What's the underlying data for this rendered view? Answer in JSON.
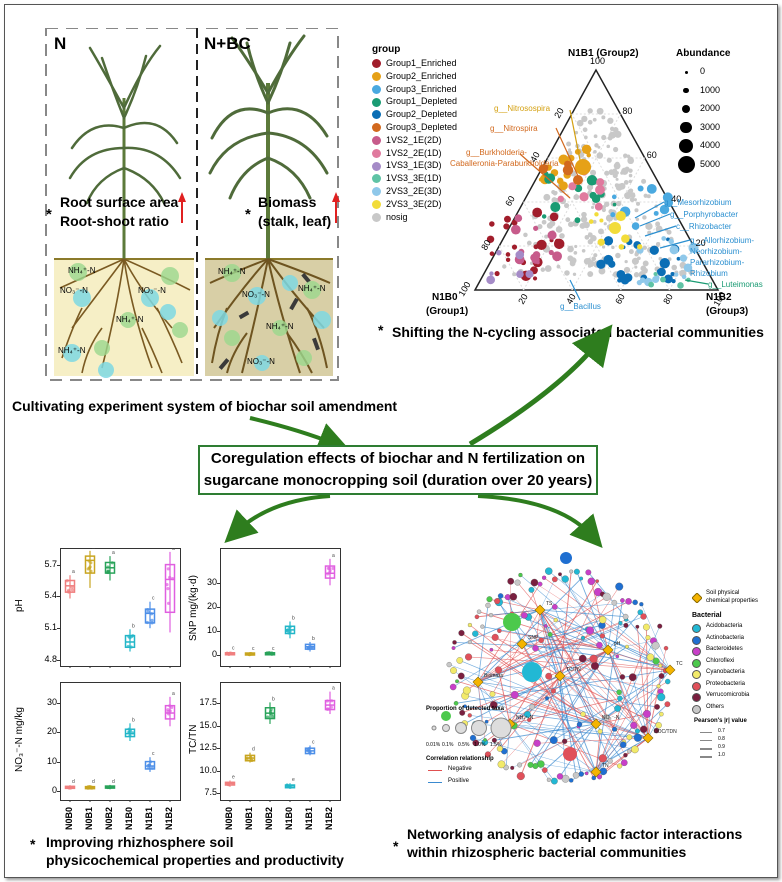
{
  "plants": {
    "n_label": "N",
    "nbc_label": "N+BC",
    "n_traits": [
      "Root surface area",
      "Root-shoot ratio"
    ],
    "nbc_traits": [
      "Biomass",
      "(stalk, leaf)"
    ],
    "asterisk": "*",
    "nh4": "NH₄⁺-N",
    "no3": "NO₃⁻-N",
    "caption": "Cultivating  experiment system of biochar soil amendment"
  },
  "center": {
    "line1": "Coregulation effects of biochar and N fertilization on",
    "line2": "sugarcane monocropping soil (duration over 20 years)"
  },
  "ternary": {
    "legend_title": "group",
    "groups": [
      {
        "label": "Group1_Enriched",
        "color": "#a11d2b"
      },
      {
        "label": "Group2_Enriched",
        "color": "#e6a117"
      },
      {
        "label": "Group3_Enriched",
        "color": "#4aa9e0"
      },
      {
        "label": "Group1_Depleted",
        "color": "#1a9b73"
      },
      {
        "label": "Group2_Depleted",
        "color": "#0b6eb5"
      },
      {
        "label": "Group3_Depleted",
        "color": "#d2691e"
      },
      {
        "label": "1VS2_1E(2D)",
        "color": "#c75b8b"
      },
      {
        "label": "1VS2_2E(1D)",
        "color": "#e07a9e"
      },
      {
        "label": "1VS3_1E(3D)",
        "color": "#a58bc7"
      },
      {
        "label": "1VS3_3E(1D)",
        "color": "#5fc3a5"
      },
      {
        "label": "2VS3_2E(3D)",
        "color": "#8fc8ea"
      },
      {
        "label": "2VS3_3E(2D)",
        "color": "#f2dc3a"
      },
      {
        "label": "nosig",
        "color": "#c8c8c8"
      }
    ],
    "abundance_title": "Abundance",
    "abundance": [
      "0",
      "1000",
      "2000",
      "3000",
      "4000",
      "5000"
    ],
    "top_label": "N1B1 (Group2)",
    "left_label": [
      "N1B0",
      "(Group1)"
    ],
    "right_label": [
      "N1B2",
      "(Group3)"
    ],
    "left_ticks": [
      "20",
      "40",
      "60",
      "80",
      "100"
    ],
    "right_ticks": [
      "100",
      "80",
      "60",
      "40",
      "20"
    ],
    "bottom_ticks": [
      "20",
      "40",
      "60",
      "80",
      "100"
    ],
    "taxa_left": [
      "g__Nitrosospira",
      "g__Nitrospira",
      "g__Burkholderia-",
      "Caballeronia-Paraburkholderia"
    ],
    "taxa_right": [
      "g__Mesorhizobium",
      "g__Porphyrobacter",
      "c__Rhizobacter",
      "g__Allorhizobium-",
      "Neorhizobium-",
      "Pararhizobium-",
      "Rhizobium",
      "g__Luteimonas"
    ],
    "taxa_bottom": "g__Bacillus",
    "caption": "Shifting the N-cycling associated bacterial communities"
  },
  "boxplots": {
    "categories": [
      "N0B0",
      "N0B1",
      "N0B2",
      "N1B0",
      "N1B1",
      "N1B2"
    ],
    "colors": [
      "#f07f7f",
      "#c8a520",
      "#29a35a",
      "#22b6c8",
      "#4d8fe8",
      "#e05fe0"
    ],
    "panels": [
      {
        "ylabel": "pH",
        "ticks": [
          "5.7",
          "5.4",
          "5.1",
          "4.8"
        ],
        "min": 4.8,
        "max": 5.8,
        "stats": [
          [
            5.38,
            5.44,
            5.5,
            5.55,
            5.6
          ],
          [
            5.48,
            5.62,
            5.74,
            5.78,
            5.83
          ],
          [
            5.55,
            5.62,
            5.67,
            5.72,
            5.78
          ],
          [
            4.88,
            4.92,
            4.97,
            5.03,
            5.09
          ],
          [
            5.1,
            5.15,
            5.24,
            5.28,
            5.35
          ],
          [
            5.06,
            5.25,
            5.56,
            5.7,
            5.82
          ]
        ],
        "letters": [
          "a",
          "a",
          "a",
          "b",
          "c",
          "d"
        ]
      },
      {
        "ylabel": "SNP mg/(kg·d)",
        "ticks": [
          "30",
          "20",
          "10",
          "0"
        ],
        "min": -2,
        "max": 42,
        "stats": [
          [
            0,
            0.3,
            0.6,
            1.0,
            1.5
          ],
          [
            0,
            0.2,
            0.5,
            0.9,
            1.3
          ],
          [
            0,
            0.3,
            0.6,
            1.0,
            1.4
          ],
          [
            7,
            9,
            10.5,
            12,
            14
          ],
          [
            1.5,
            2.5,
            3.5,
            4.5,
            5.5
          ],
          [
            29,
            32,
            34,
            37,
            40
          ]
        ],
        "letters": [
          "c",
          "c",
          "c",
          "b",
          "b",
          "a"
        ]
      },
      {
        "ylabel": "NO₃⁻-N mg/kg",
        "ticks": [
          "30",
          "20",
          "10",
          "0"
        ],
        "min": -1,
        "max": 35,
        "stats": [
          [
            0.5,
            1.0,
            1.3,
            1.6,
            2.0
          ],
          [
            0.5,
            0.9,
            1.2,
            1.5,
            2.0
          ],
          [
            0.6,
            1.0,
            1.3,
            1.7,
            2.1
          ],
          [
            17,
            18.5,
            19.5,
            21,
            23
          ],
          [
            6.5,
            7.5,
            8.5,
            10,
            11.5
          ],
          [
            22,
            24.5,
            26.5,
            29,
            32
          ]
        ],
        "letters": [
          "d",
          "d",
          "d",
          "b",
          "c",
          "a"
        ]
      },
      {
        "ylabel": "TC/TN",
        "ticks": [
          "17.5",
          "15.0",
          "12.5",
          "10.0",
          "7.5"
        ],
        "min": 7.4,
        "max": 19.2,
        "stats": [
          [
            8.2,
            8.4,
            8.6,
            8.7,
            8.9
          ],
          [
            10.9,
            11.1,
            11.4,
            11.7,
            12.0
          ],
          [
            15.2,
            15.8,
            16.4,
            17.0,
            17.6
          ],
          [
            8.0,
            8.1,
            8.3,
            8.4,
            8.6
          ],
          [
            11.7,
            11.9,
            12.2,
            12.5,
            12.8
          ],
          [
            16.3,
            16.8,
            17.3,
            17.8,
            18.8
          ]
        ],
        "letters": [
          "e",
          "d",
          "b",
          "e",
          "c",
          "a"
        ]
      }
    ],
    "caption_line1": "Improving rhizhosphere soil",
    "caption_line2": "physicochemical properties and productivity"
  },
  "network": {
    "legend_soil": [
      "Soil physical",
      "chemical properties"
    ],
    "bacterial_title": "Bacterial",
    "phyla": [
      {
        "label": "Acidobacteria",
        "color": "#22b8d4"
      },
      {
        "label": "Actinobacteria",
        "color": "#1f6fd1"
      },
      {
        "label": "Bacteroidetes",
        "color": "#c83fc8"
      },
      {
        "label": "Chloroflexi",
        "color": "#4cc94c"
      },
      {
        "label": "Cyanobacteria",
        "color": "#f2ea6a"
      },
      {
        "label": "Proteobacteria",
        "color": "#e0505a"
      },
      {
        "label": "Verrucomicrobia",
        "color": "#7a1f3f"
      },
      {
        "label": "Others",
        "color": "#c8c8c8"
      }
    ],
    "pearson_title": "Pearson's |r| value",
    "pearson_values": [
      "0.7",
      "0.8",
      "0.9",
      "1.0"
    ],
    "proportion_title": "Proportion of detected taxa",
    "proportion_values": [
      "0.01%",
      "0.1%",
      "0.5%",
      "1.0%",
      "1.5%"
    ],
    "corr_title": "Correlation relationship",
    "corr_negative": "Negative",
    "corr_positive": "Positive",
    "factor_labels": [
      "TC/TN",
      "pH",
      "NO₃⁻-N",
      "SNP",
      "NH₄⁺-N",
      "TS",
      "TN",
      "DOC/TDN",
      "TC",
      "Biomass"
    ],
    "caption_line1": "Networking analysis of edaphic factor interactions",
    "caption_line2": "within rhizospheric bacterial communities"
  }
}
